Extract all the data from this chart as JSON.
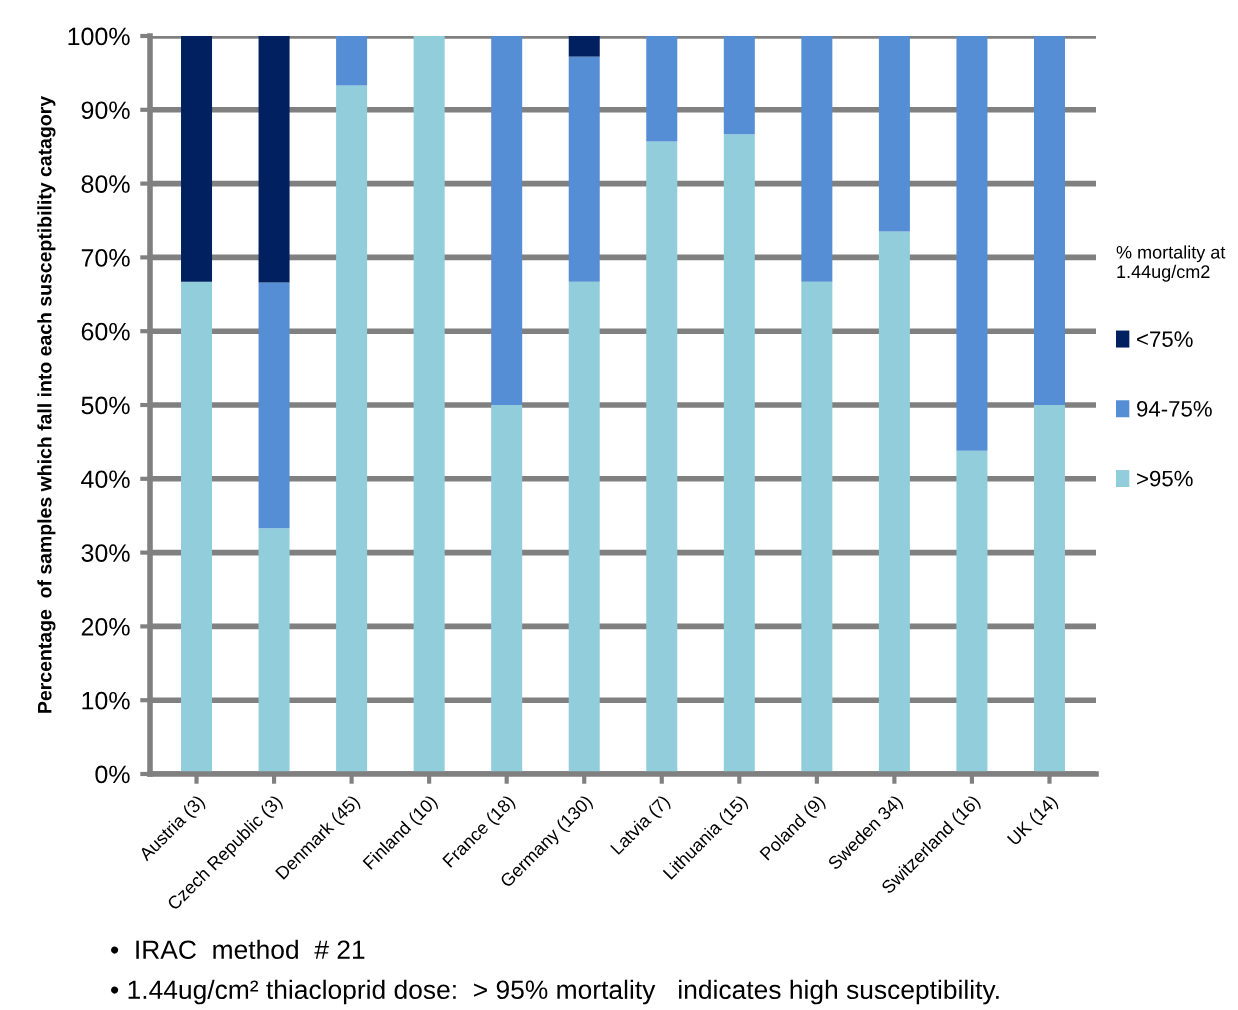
{
  "chart_data": {
    "type": "bar",
    "stacked": true,
    "ylabel": "Percentage  of samples which fall into each susceptibility catagory",
    "legend_title": "% mortality at\n1.44ug/cm2",
    "categories": [
      "Austria (3)",
      "Czech Republic (3)",
      "Denmark (45)",
      "Finland (10)",
      "France (18)",
      "Germany (130)",
      "Latvia (7)",
      "Lithuania (15)",
      "Poland (9)",
      "Sweden 34)",
      "Switzerland (16)",
      "UK (14)"
    ],
    "series": [
      {
        "name": ">95%",
        "color": "#92cddc",
        "values": [
          66.7,
          33.3,
          93.3,
          100,
          50,
          66.7,
          85.7,
          86.7,
          66.7,
          73.5,
          43.8,
          50
        ]
      },
      {
        "name": "94-75%",
        "color": "#558ed5",
        "values": [
          0,
          33.3,
          6.7,
          0,
          50,
          30.5,
          14.3,
          13.3,
          33.3,
          26.5,
          56.2,
          50
        ]
      },
      {
        "name": "<75%",
        "color": "#002060",
        "values": [
          33.3,
          33.4,
          0,
          0,
          0,
          2.8,
          0,
          0,
          0,
          0,
          0,
          0
        ]
      }
    ],
    "ylim": [
      0,
      100
    ],
    "yticks": [
      {
        "value": 0,
        "label": "0%"
      },
      {
        "value": 10,
        "label": "10%"
      },
      {
        "value": 20,
        "label": "20%"
      },
      {
        "value": 30,
        "label": "30%"
      },
      {
        "value": 40,
        "label": "40%"
      },
      {
        "value": 50,
        "label": "50%"
      },
      {
        "value": 60,
        "label": "60%"
      },
      {
        "value": 70,
        "label": "70%"
      },
      {
        "value": 80,
        "label": "80%"
      },
      {
        "value": 90,
        "label": "90%"
      },
      {
        "value": 100,
        "label": "100%"
      }
    ],
    "grid": "y",
    "legend": "right",
    "annotations": [
      "•  IRAC  method  # 21",
      "• 1.44ug/cm² thiacloprid dose:  > 95% mortality   indicates high susceptibility."
    ]
  }
}
